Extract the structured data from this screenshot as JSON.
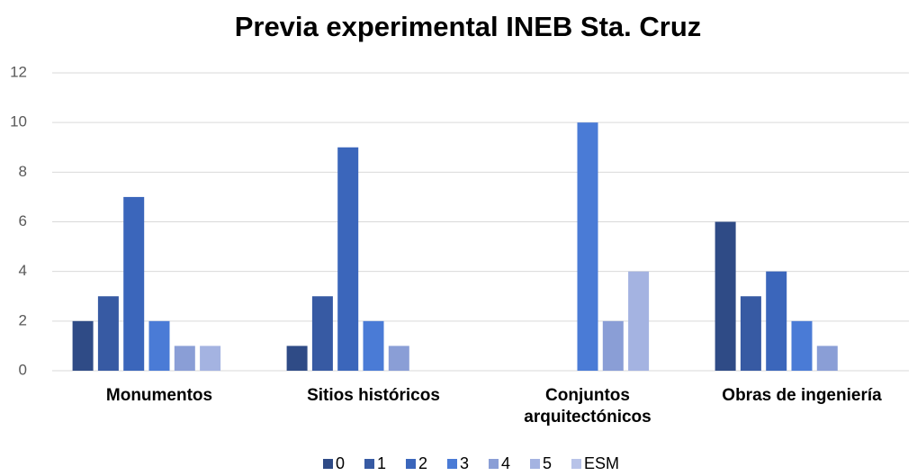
{
  "chart_data": {
    "type": "bar",
    "title": "Previa experimental INEB Sta. Cruz",
    "categories": [
      "Monumentos",
      "Sitios históricos",
      "Conjuntos arquitectónicos",
      "Obras de ingeniería"
    ],
    "series": [
      {
        "name": "0",
        "color": "#2f4b86",
        "values": [
          2,
          1,
          0,
          6
        ]
      },
      {
        "name": "1",
        "color": "#375aa3",
        "values": [
          3,
          3,
          0,
          3
        ]
      },
      {
        "name": "2",
        "color": "#3b66bb",
        "values": [
          7,
          9,
          0,
          4
        ]
      },
      {
        "name": "3",
        "color": "#4a7bd6",
        "values": [
          2,
          2,
          10,
          2
        ]
      },
      {
        "name": "4",
        "color": "#8a9ed6",
        "values": [
          1,
          1,
          2,
          1
        ]
      },
      {
        "name": "5",
        "color": "#a4b3e1",
        "values": [
          1,
          0,
          4,
          0
        ]
      },
      {
        "name": "ESM",
        "color": "#b8c3e8",
        "values": [
          0,
          0,
          0,
          0
        ]
      }
    ],
    "ylim": [
      0,
      12
    ],
    "yticks": [
      0,
      2,
      4,
      6,
      8,
      10,
      12
    ],
    "grid": true,
    "legend": "bottom"
  }
}
